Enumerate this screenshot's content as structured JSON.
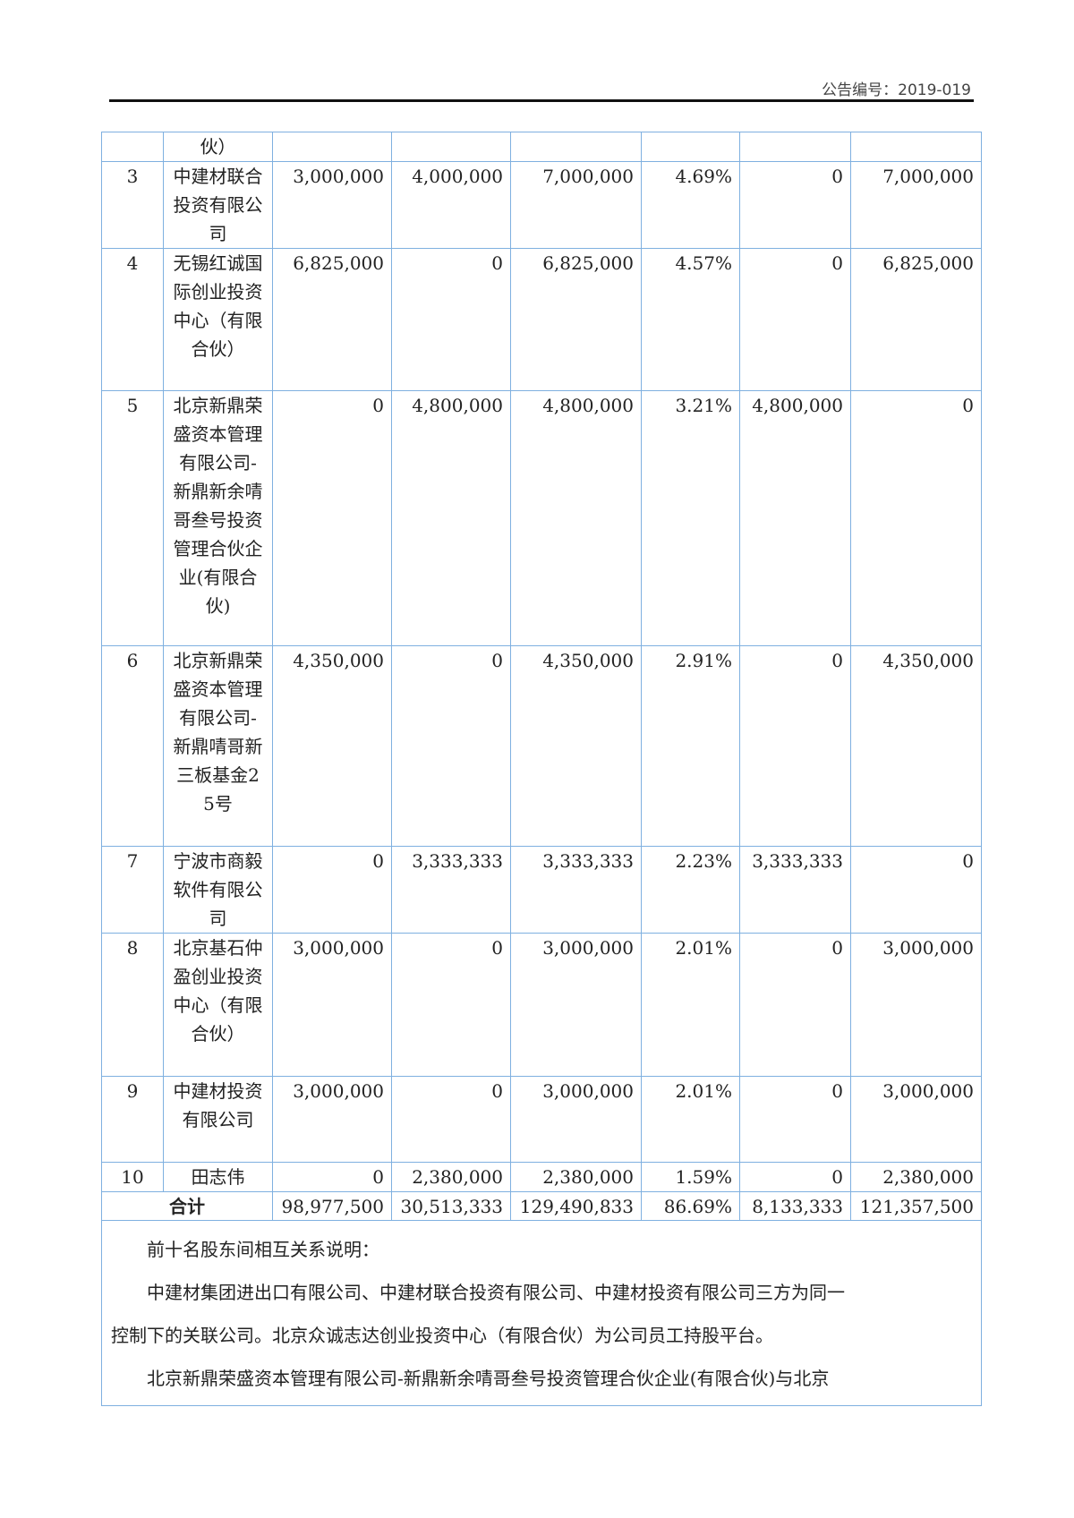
{
  "header": {
    "announcement_no": "公告编号：2019-019"
  },
  "table": {
    "continuation_name": "伙）",
    "rows": [
      {
        "no": "3",
        "name": "中建材联合投资有限公司",
        "c1": "3,000,000",
        "c2": "4,000,000",
        "c3": "7,000,000",
        "c4": "4.69%",
        "c5": "0",
        "c6": "7,000,000"
      },
      {
        "no": "4",
        "name": "无锡红诚国际创业投资中心（有限合伙）",
        "c1": "6,825,000",
        "c2": "0",
        "c3": "6,825,000",
        "c4": "4.57%",
        "c5": "0",
        "c6": "6,825,000"
      },
      {
        "no": "5",
        "name": "北京新鼎荣盛资本管理有限公司-新鼎新余啨哥叁号投资管理合伙企业(有限合伙)",
        "c1": "0",
        "c2": "4,800,000",
        "c3": "4,800,000",
        "c4": "3.21%",
        "c5": "4,800,000",
        "c6": "0"
      },
      {
        "no": "6",
        "name": "北京新鼎荣盛资本管理有限公司-新鼎啨哥新三板基金25号",
        "c1": "4,350,000",
        "c2": "0",
        "c3": "4,350,000",
        "c4": "2.91%",
        "c5": "0",
        "c6": "4,350,000"
      },
      {
        "no": "7",
        "name": "宁波市商毅软件有限公司",
        "c1": "0",
        "c2": "3,333,333",
        "c3": "3,333,333",
        "c4": "2.23%",
        "c5": "3,333,333",
        "c6": "0"
      },
      {
        "no": "8",
        "name": "北京基石仲盈创业投资中心（有限合伙）",
        "c1": "3,000,000",
        "c2": "0",
        "c3": "3,000,000",
        "c4": "2.01%",
        "c5": "0",
        "c6": "3,000,000"
      },
      {
        "no": "9",
        "name": "中建材投资有限公司",
        "c1": "3,000,000",
        "c2": "0",
        "c3": "3,000,000",
        "c4": "2.01%",
        "c5": "0",
        "c6": "3,000,000"
      },
      {
        "no": "10",
        "name": "田志伟",
        "c1": "0",
        "c2": "2,380,000",
        "c3": "2,380,000",
        "c4": "1.59%",
        "c5": "0",
        "c6": "2,380,000"
      }
    ],
    "total": {
      "label": "合计",
      "c1": "98,977,500",
      "c2": "30,513,333",
      "c3": "129,490,833",
      "c4": "86.69%",
      "c5": "8,133,333",
      "c6": "121,357,500"
    },
    "remarks": [
      "前十名股东间相互关系说明：",
      "中建材集团进出口有限公司、中建材联合投资有限公司、中建材投资有限公司三方为同一",
      "控制下的关联公司。北京众诚志达创业投资中心（有限合伙）为公司员工持股平台。",
      "北京新鼎荣盛资本管理有限公司-新鼎新余啨哥叁号投资管理合伙企业(有限合伙)与北京"
    ]
  }
}
